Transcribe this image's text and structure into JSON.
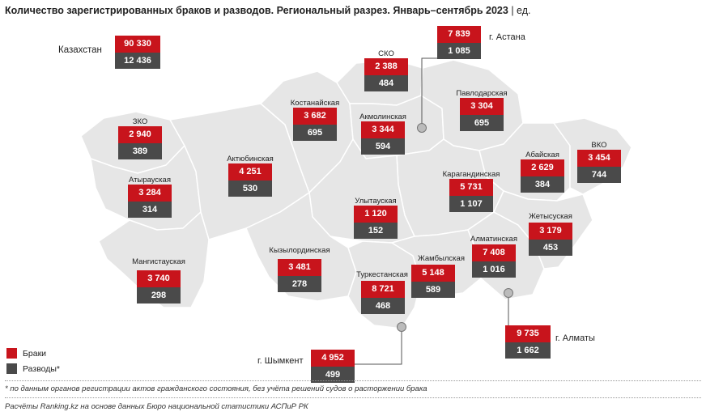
{
  "title": "Количество зарегистрированных браков и разводов. Региональный разрез. Январь–сентябрь 2023",
  "unit": "ед.",
  "colors": {
    "marriages": "#c8141c",
    "divorces": "#4a4a4a",
    "region_fill": "#e6e6e6",
    "region_border": "#ffffff"
  },
  "kazakhstan": {
    "label": "Казахстан",
    "marriages": "90 330",
    "divorces": "12 436"
  },
  "regions": [
    {
      "label": "СКО",
      "marriages": "2 388",
      "divorces": "484"
    },
    {
      "label": "Костанайская",
      "marriages": "3 682",
      "divorces": "695"
    },
    {
      "label": "Акмолинская",
      "marriages": "3 344",
      "divorces": "594"
    },
    {
      "label": "Павлодарская",
      "marriages": "3 304",
      "divorces": "695"
    },
    {
      "label": "ЗКО",
      "marriages": "2 940",
      "divorces": "389"
    },
    {
      "label": "Актюбинская",
      "marriages": "4 251",
      "divorces": "530"
    },
    {
      "label": "Абайская",
      "marriages": "2 629",
      "divorces": "384"
    },
    {
      "label": "ВКО",
      "marriages": "3 454",
      "divorces": "744"
    },
    {
      "label": "Атырауская",
      "marriages": "3 284",
      "divorces": "314"
    },
    {
      "label": "Карагандинская",
      "marriages": "5 731",
      "divorces": "1 107"
    },
    {
      "label": "Улытауская",
      "marriages": "1 120",
      "divorces": "152"
    },
    {
      "label": "Жетысуская",
      "marriages": "3 179",
      "divorces": "453"
    },
    {
      "label": "Алматинская",
      "marriages": "7 408",
      "divorces": "1 016"
    },
    {
      "label": "Мангистауская",
      "marriages": "3 740",
      "divorces": "298"
    },
    {
      "label": "Кызылординская",
      "marriages": "3 481",
      "divorces": "278"
    },
    {
      "label": "Жамбылская",
      "marriages": "5 148",
      "divorces": "589"
    },
    {
      "label": "Туркестанская",
      "marriages": "8 721",
      "divorces": "468"
    }
  ],
  "cities": [
    {
      "label": "г. Астана",
      "marriages": "7 839",
      "divorces": "1 085"
    },
    {
      "label": "г. Алматы",
      "marriages": "9 735",
      "divorces": "1 662"
    },
    {
      "label": "г. Шымкент",
      "marriages": "4 952",
      "divorces": "499"
    }
  ],
  "legend": {
    "marriages": "Браки",
    "divorces": "Разводы*"
  },
  "footnote": "* по данным органов регистрации актов гражданского состояния, без учёта решений судов о расторжении брака",
  "source": "Расчёты Ranking.kz на основе данных Бюро национальной статистики АСПиР РК"
}
